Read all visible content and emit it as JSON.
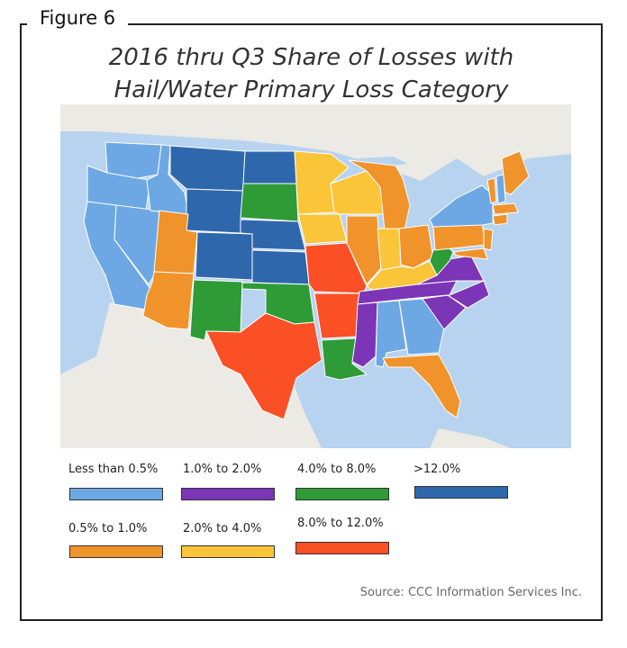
{
  "figure_label": "Figure 6",
  "title_line1": "2016 thru Q3 Share of Losses with",
  "title_line2": "Hail/Water Primary Loss Category",
  "source": "Source: CCC Information Services Inc.",
  "colors": {
    "lt05": "#6ea8e4",
    "c05_1": "#f0932b",
    "c1_2": "#7b35b6",
    "c2_4": "#fbc53a",
    "c4_8": "#2e9b36",
    "c8_12": "#fb4f26",
    "gt12": "#2f67ad",
    "land": "#f0efe9",
    "water": "#b7d3ef"
  },
  "legend": [
    {
      "label": "Less than 0.5%",
      "color": "#6ea8e4"
    },
    {
      "label": "1.0% to 2.0%",
      "color": "#7b35b6"
    },
    {
      "label": "4.0% to 8.0%",
      "color": "#2e9b36"
    },
    {
      "label": ">12.0%",
      "color": "#2f67ad"
    },
    {
      "label": "0.5% to 1.0%",
      "color": "#f0932b"
    },
    {
      "label": "2.0% to 4.0%",
      "color": "#fbc53a"
    },
    {
      "label": "8.0% to 12.0%",
      "color": "#fb4f26"
    }
  ],
  "states": [
    {
      "name": "Washington",
      "cat": "Less than 0.5%",
      "color": "#6ea8e4"
    },
    {
      "name": "Oregon",
      "cat": "Less than 0.5%",
      "color": "#6ea8e4"
    },
    {
      "name": "California",
      "cat": "Less than 0.5%",
      "color": "#6ea8e4"
    },
    {
      "name": "Nevada",
      "cat": "Less than 0.5%",
      "color": "#6ea8e4"
    },
    {
      "name": "Idaho",
      "cat": "Less than 0.5%",
      "color": "#6ea8e4"
    },
    {
      "name": "Montana",
      "cat": ">12.0%",
      "color": "#2f67ad"
    },
    {
      "name": "Wyoming",
      "cat": ">12.0%",
      "color": "#2f67ad"
    },
    {
      "name": "Utah",
      "cat": "0.5% to 1.0%",
      "color": "#f0932b"
    },
    {
      "name": "Arizona",
      "cat": "0.5% to 1.0%",
      "color": "#f0932b"
    },
    {
      "name": "Colorado",
      "cat": ">12.0%",
      "color": "#2f67ad"
    },
    {
      "name": "New Mexico",
      "cat": "4.0% to 8.0%",
      "color": "#2e9b36"
    },
    {
      "name": "North Dakota",
      "cat": ">12.0%",
      "color": "#2f67ad"
    },
    {
      "name": "South Dakota",
      "cat": "4.0% to 8.0%",
      "color": "#2e9b36"
    },
    {
      "name": "Nebraska",
      "cat": ">12.0%",
      "color": "#2f67ad"
    },
    {
      "name": "Kansas",
      "cat": ">12.0%",
      "color": "#2f67ad"
    },
    {
      "name": "Oklahoma",
      "cat": "4.0% to 8.0%",
      "color": "#2e9b36"
    },
    {
      "name": "Texas",
      "cat": "8.0% to 12.0%",
      "color": "#fb4f26"
    },
    {
      "name": "Minnesota",
      "cat": "2.0% to 4.0%",
      "color": "#fbc53a"
    },
    {
      "name": "Iowa",
      "cat": "2.0% to 4.0%",
      "color": "#fbc53a"
    },
    {
      "name": "Missouri",
      "cat": "8.0% to 12.0%",
      "color": "#fb4f26"
    },
    {
      "name": "Arkansas",
      "cat": "8.0% to 12.0%",
      "color": "#fb4f26"
    },
    {
      "name": "Louisiana",
      "cat": "4.0% to 8.0%",
      "color": "#2e9b36"
    },
    {
      "name": "Wisconsin",
      "cat": "2.0% to 4.0%",
      "color": "#fbc53a"
    },
    {
      "name": "Illinois",
      "cat": "0.5% to 1.0%",
      "color": "#f0932b"
    },
    {
      "name": "Michigan",
      "cat": "0.5% to 1.0%",
      "color": "#f0932b"
    },
    {
      "name": "Indiana",
      "cat": "2.0% to 4.0%",
      "color": "#fbc53a"
    },
    {
      "name": "Ohio",
      "cat": "0.5% to 1.0%",
      "color": "#f0932b"
    },
    {
      "name": "Kentucky",
      "cat": "2.0% to 4.0%",
      "color": "#fbc53a"
    },
    {
      "name": "Tennessee",
      "cat": "1.0% to 2.0%",
      "color": "#7b35b6"
    },
    {
      "name": "Mississippi",
      "cat": "1.0% to 2.0%",
      "color": "#7b35b6"
    },
    {
      "name": "Alabama",
      "cat": "Less than 0.5%",
      "color": "#6ea8e4"
    },
    {
      "name": "Georgia",
      "cat": "Less than 0.5%",
      "color": "#6ea8e4"
    },
    {
      "name": "Florida",
      "cat": "0.5% to 1.0%",
      "color": "#f0932b"
    },
    {
      "name": "South Carolina",
      "cat": "1.0% to 2.0%",
      "color": "#7b35b6"
    },
    {
      "name": "North Carolina",
      "cat": "1.0% to 2.0%",
      "color": "#7b35b6"
    },
    {
      "name": "Virginia",
      "cat": "1.0% to 2.0%",
      "color": "#7b35b6"
    },
    {
      "name": "West Virginia",
      "cat": "4.0% to 8.0%",
      "color": "#2e9b36"
    },
    {
      "name": "Pennsylvania",
      "cat": "0.5% to 1.0%",
      "color": "#f0932b"
    },
    {
      "name": "New York",
      "cat": "Less than 0.5%",
      "color": "#6ea8e4"
    },
    {
      "name": "New Jersey",
      "cat": "0.5% to 1.0%",
      "color": "#f0932b"
    },
    {
      "name": "Maryland",
      "cat": "0.5% to 1.0%",
      "color": "#f0932b"
    },
    {
      "name": "Vermont",
      "cat": "0.5% to 1.0%",
      "color": "#f0932b"
    },
    {
      "name": "New Hampshire",
      "cat": "Less than 0.5%",
      "color": "#6ea8e4"
    },
    {
      "name": "Maine",
      "cat": "0.5% to 1.0%",
      "color": "#f0932b"
    },
    {
      "name": "Massachusetts",
      "cat": "0.5% to 1.0%",
      "color": "#f0932b"
    },
    {
      "name": "Connecticut",
      "cat": "0.5% to 1.0%",
      "color": "#f0932b"
    }
  ]
}
